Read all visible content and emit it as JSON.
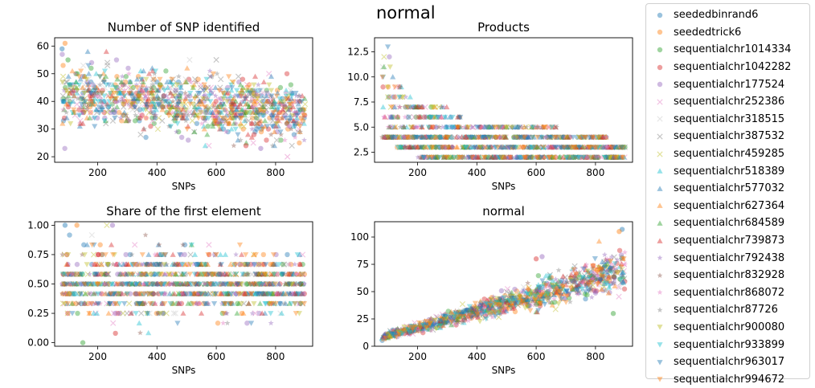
{
  "figure_title": "normal",
  "legend": [
    {
      "name": "seededbinrand6",
      "color": "#1f77b4",
      "marker": "circle"
    },
    {
      "name": "seededtrick6",
      "color": "#ff7f0e",
      "marker": "circle"
    },
    {
      "name": "sequentialchr1014334",
      "color": "#2ca02c",
      "marker": "circle"
    },
    {
      "name": "sequentialchr1042282",
      "color": "#d62728",
      "marker": "circle"
    },
    {
      "name": "sequentialchr177524",
      "color": "#9467bd",
      "marker": "circle"
    },
    {
      "name": "sequentialchr252386",
      "color": "#e377c2",
      "marker": "x"
    },
    {
      "name": "sequentialchr318515",
      "color": "#c7c7c7",
      "marker": "x"
    },
    {
      "name": "sequentialchr387532",
      "color": "#7f7f7f",
      "marker": "x"
    },
    {
      "name": "sequentialchr459285",
      "color": "#bcbd22",
      "marker": "x"
    },
    {
      "name": "sequentialchr518389",
      "color": "#17becf",
      "marker": "triangle-up"
    },
    {
      "name": "sequentialchr577032",
      "color": "#1f77b4",
      "marker": "triangle-up"
    },
    {
      "name": "sequentialchr627364",
      "color": "#ff7f0e",
      "marker": "triangle-up"
    },
    {
      "name": "sequentialchr684589",
      "color": "#2ca02c",
      "marker": "triangle-up"
    },
    {
      "name": "sequentialchr739873",
      "color": "#d62728",
      "marker": "triangle-up"
    },
    {
      "name": "sequentialchr792438",
      "color": "#9467bd",
      "marker": "star"
    },
    {
      "name": "sequentialchr832928",
      "color": "#8c564b",
      "marker": "star"
    },
    {
      "name": "sequentialchr868072",
      "color": "#e377c2",
      "marker": "star"
    },
    {
      "name": "sequentialchr87726",
      "color": "#7f7f7f",
      "marker": "star"
    },
    {
      "name": "sequentialchr900080",
      "color": "#bcbd22",
      "marker": "triangle-down"
    },
    {
      "name": "sequentialchr933899",
      "color": "#17becf",
      "marker": "triangle-down"
    },
    {
      "name": "sequentialchr963017",
      "color": "#1f77b4",
      "marker": "triangle-down"
    },
    {
      "name": "sequentialchr994672",
      "color": "#ff7f0e",
      "marker": "triangle-down"
    }
  ],
  "chart_data": [
    {
      "type": "scatter",
      "title": "Number of SNP identified",
      "xlabel": "SNPs",
      "ylabel": "",
      "xlim": [
        55,
        925
      ],
      "ylim": [
        18,
        63
      ],
      "xticks": [
        200,
        400,
        600,
        800
      ],
      "yticks": [
        20,
        30,
        40,
        50,
        60
      ],
      "yticklabels": [
        "20",
        "30",
        "40",
        "50",
        "60"
      ],
      "pattern": "roughly flat cloud, 25 to 55, higher at low SNPs",
      "trend": {
        "x": [
          80,
          900
        ],
        "center": [
          42,
          36
        ],
        "spread": [
          9,
          8
        ]
      },
      "samples": [
        [
          80,
          59
        ],
        [
          90,
          61
        ],
        [
          100,
          55
        ],
        [
          700,
          24
        ],
        [
          750,
          23
        ],
        [
          840,
          20
        ],
        [
          510,
          55
        ],
        [
          600,
          55
        ]
      ]
    },
    {
      "type": "scatter",
      "title": "Products",
      "xlabel": "SNPs",
      "ylabel": "",
      "xlim": [
        55,
        925
      ],
      "ylim": [
        1.5,
        13.9
      ],
      "xticks": [
        200,
        400,
        600,
        800
      ],
      "yticks": [
        2.5,
        5.0,
        7.5,
        10.0,
        12.5
      ],
      "yticklabels": [
        "2.5",
        "5.0",
        "7.5",
        "10.0",
        "12.5"
      ],
      "pattern": "discrete levels 2,3,4,5,6,7 decreasing with SNPs",
      "levels": [
        {
          "y": 2,
          "x": [
            200,
            900
          ]
        },
        {
          "y": 3,
          "x": [
            130,
            900
          ]
        },
        {
          "y": 4,
          "x": [
            80,
            840
          ]
        },
        {
          "y": 5,
          "x": [
            80,
            680
          ]
        },
        {
          "y": 6,
          "x": [
            80,
            350
          ]
        },
        {
          "y": 7,
          "x": [
            80,
            300
          ]
        },
        {
          "y": 8,
          "x": [
            80,
            180
          ]
        },
        {
          "y": 9,
          "x": [
            80,
            150
          ]
        },
        {
          "y": 10,
          "x": [
            80,
            120
          ]
        },
        {
          "y": 11,
          "x": [
            80,
            110
          ]
        },
        {
          "y": 12,
          "x": [
            85,
            105
          ]
        },
        {
          "y": 13,
          "x": [
            95,
            100
          ]
        }
      ]
    },
    {
      "type": "scatter",
      "title": "Share of the first element",
      "xlabel": "SNPs",
      "ylabel": "",
      "xlim": [
        55,
        925
      ],
      "ylim": [
        -0.03,
        1.03
      ],
      "xticks": [
        200,
        400,
        600,
        800
      ],
      "yticks": [
        0.0,
        0.25,
        0.5,
        0.75,
        1.0
      ],
      "yticklabels": [
        "0.00",
        "0.25",
        "0.50",
        "0.75",
        "1.00"
      ],
      "pattern": "wide cloud between 0.1 and 0.95",
      "trend": {
        "x": [
          80,
          900
        ],
        "center": [
          0.5,
          0.5
        ],
        "spread": [
          0.22,
          0.2
        ]
      },
      "samples": [
        [
          90,
          1.0
        ],
        [
          130,
          1.0
        ],
        [
          150,
          0.0
        ],
        [
          260,
          0.08
        ],
        [
          250,
          1.0
        ]
      ]
    },
    {
      "type": "scatter",
      "title": "normal",
      "xlabel": "SNPs",
      "ylabel": "",
      "xlim": [
        55,
        925
      ],
      "ylim": [
        0,
        114
      ],
      "xticks": [
        200,
        400,
        600,
        800
      ],
      "yticks": [
        0,
        25,
        50,
        75,
        100
      ],
      "yticklabels": [
        "0",
        "25",
        "50",
        "75",
        "100"
      ],
      "pattern": "linear increase with SNPs",
      "trend": {
        "x": [
          80,
          900
        ],
        "center": [
          8,
          70
        ],
        "spread": [
          2,
          14
        ]
      },
      "samples": [
        [
          890,
          107
        ],
        [
          880,
          105
        ],
        [
          860,
          30
        ],
        [
          600,
          80
        ],
        [
          620,
          82
        ]
      ]
    }
  ]
}
